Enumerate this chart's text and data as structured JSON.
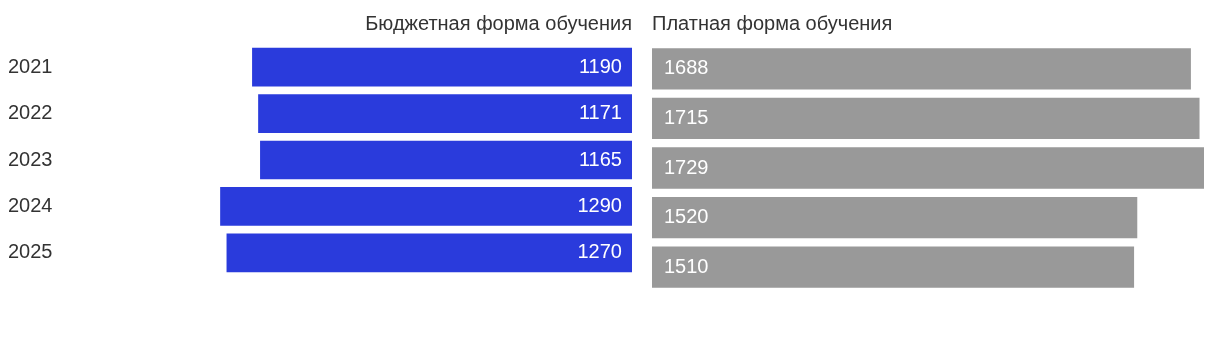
{
  "chart_data": [
    {
      "type": "bar",
      "orientation": "horizontal",
      "title": "Бюджетная форма обучения",
      "categories": [
        "2021",
        "2022",
        "2023",
        "2024",
        "2025"
      ],
      "values": [
        1190,
        1171,
        1165,
        1290,
        1270
      ],
      "color": "#2a3bdc",
      "data_labels": true,
      "tick_labels": "y"
    },
    {
      "type": "bar",
      "orientation": "horizontal",
      "title": "Платная форма обучения",
      "categories": [
        "2021",
        "2022",
        "2023",
        "2024",
        "2025"
      ],
      "values": [
        1688,
        1715,
        1729,
        1520,
        1510
      ],
      "color": "#999999",
      "data_labels": true,
      "tick_labels": false
    }
  ]
}
